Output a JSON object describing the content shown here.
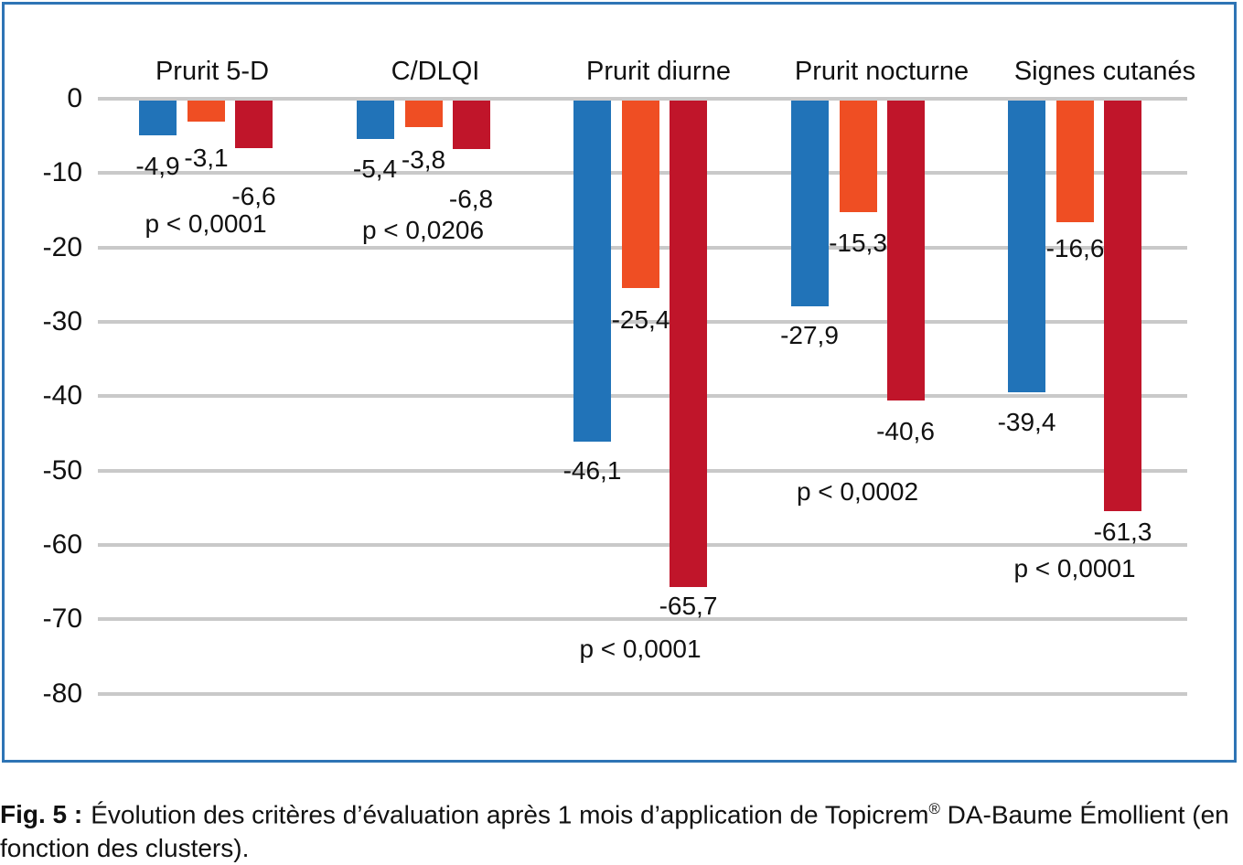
{
  "figure": {
    "caption_label": "Fig. 5 :",
    "caption_before_reg": "Évolution des critères d’évaluation après 1 mois d’application de Topicrem",
    "caption_reg": "®",
    "caption_after_reg": " DA-Baume Émollient (en fonction des clusters)."
  },
  "chart_data": {
    "type": "bar",
    "title": "",
    "xlabel": "",
    "ylabel": "",
    "categories": [
      "Prurit 5-D",
      "C/DLQI",
      "Prurit diurne",
      "Prurit nocturne",
      "Signes cutanés"
    ],
    "series": [
      {
        "name": "blue",
        "color": "#2173b8",
        "values": [
          -4.9,
          -5.4,
          -46.1,
          -27.9,
          -39.4
        ],
        "labels": [
          "-4,9",
          "-5,4",
          "-46,1",
          "-27,9",
          "-39,4"
        ]
      },
      {
        "name": "orange",
        "color": "#ef4e23",
        "values": [
          -3.1,
          -3.8,
          -25.4,
          -15.3,
          -16.6
        ],
        "labels": [
          "-3,1",
          "-3,8",
          "-25,4",
          "-15,3",
          "-16,6"
        ]
      },
      {
        "name": "red",
        "color": "#c0152a",
        "values": [
          -6.6,
          -6.8,
          -65.7,
          -40.6,
          -61.3
        ],
        "labels": [
          "-6,6",
          "-6,8",
          "-65,7",
          "-40,6",
          "-61,3"
        ]
      }
    ],
    "p_values": [
      "p < 0,0001",
      "p < 0,0206",
      "p < 0,0001",
      "p < 0,0002",
      "p < 0,0001"
    ],
    "y_ticks": [
      "0",
      "-10",
      "-20",
      "-30",
      "-40",
      "-50",
      "-60",
      "-70",
      "-80"
    ],
    "y_tick_values": [
      0,
      -10,
      -20,
      -30,
      -40,
      -50,
      -60,
      -70,
      -80
    ],
    "ylim": [
      -85,
      0
    ],
    "grid": "horizontal",
    "legend": "none"
  },
  "colors": {
    "panel_border": "#2e74b5",
    "gridline": "#c9c9c9",
    "text": "#111111",
    "background": "#ffffff"
  }
}
